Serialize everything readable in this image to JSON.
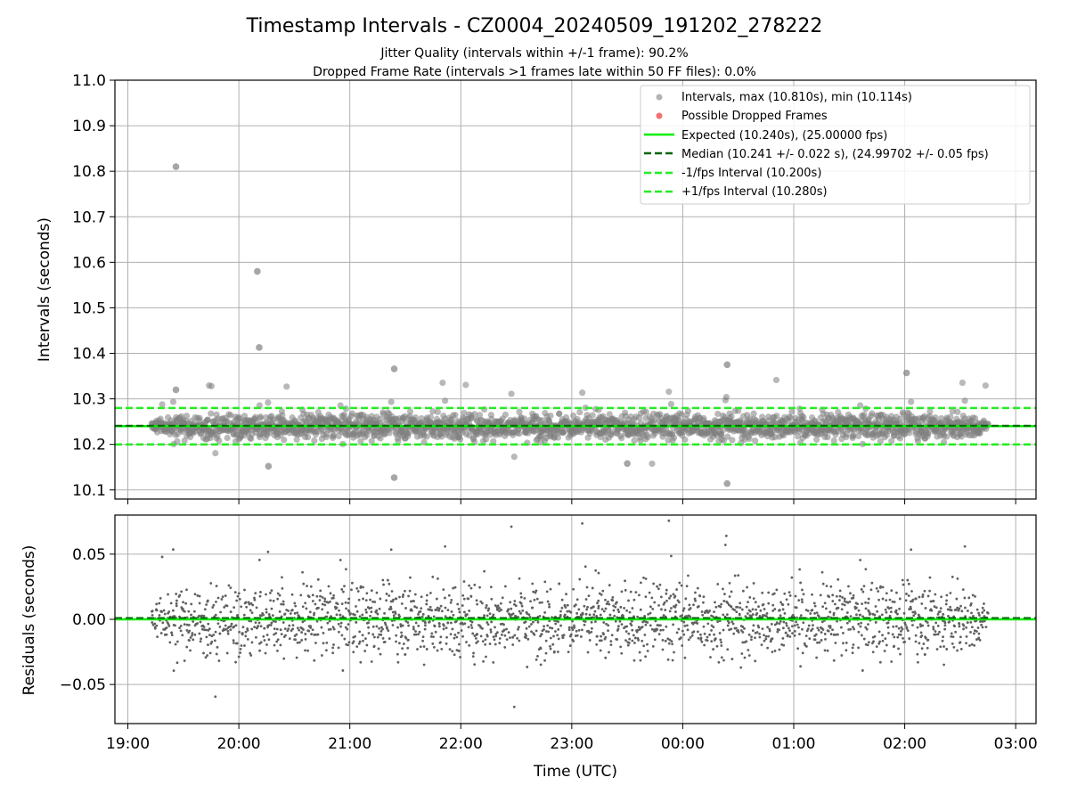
{
  "figure": {
    "title": "Timestamp Intervals - CZ0004_20240509_191202_278222",
    "subtitle_line1": "Jitter Quality (intervals within +/-1 frame): 90.2%",
    "subtitle_line2": "Dropped Frame Rate (intervals >1 frames late within 50 FF files): 0.0%"
  },
  "legend": {
    "intervals": "Intervals, max (10.810s), min (10.114s)",
    "dropped": "Possible Dropped Frames",
    "expected": "Expected (10.240s), (25.00000 fps)",
    "median": "Median (10.241 +/- 0.022 s), (24.99702 +/- 0.05 fps)",
    "minus_interval": "-1/fps Interval (10.200s)",
    "plus_interval": "+1/fps Interval (10.280s)"
  },
  "colors": {
    "points": "#808080",
    "dropped": "#f06060",
    "expected": "#00ee00",
    "median": "#006400",
    "interval": "#22ee22",
    "grid": "#b0b0b0"
  },
  "chart_data": [
    {
      "type": "scatter",
      "ylabel": "Intervals (seconds)",
      "xlim": [
        "18:53",
        "03:11"
      ],
      "ylim": [
        10.08,
        11.0
      ],
      "yticks": [
        "10.1",
        "10.2",
        "10.3",
        "10.4",
        "10.5",
        "10.6",
        "10.7",
        "10.8",
        "10.9",
        "11.0"
      ],
      "grid": true,
      "legend_position": "top-right",
      "data_x_range": [
        "19:13",
        "02:45"
      ],
      "expected": 10.24,
      "median": 10.241,
      "minus_interval": 10.2,
      "plus_interval": 10.28,
      "max": 10.81,
      "min": 10.114,
      "outliers": [
        {
          "x": "19:26",
          "y": 10.81
        },
        {
          "x": "19:26",
          "y": 10.32
        },
        {
          "x": "20:10",
          "y": 10.58
        },
        {
          "x": "20:11",
          "y": 10.413
        },
        {
          "x": "20:16",
          "y": 10.152
        },
        {
          "x": "21:24",
          "y": 10.366
        },
        {
          "x": "21:24",
          "y": 10.127
        },
        {
          "x": "23:30",
          "y": 10.158
        },
        {
          "x": "00:24",
          "y": 10.375
        },
        {
          "x": "00:24",
          "y": 10.114
        },
        {
          "x": "02:01",
          "y": 10.357
        }
      ]
    },
    {
      "type": "scatter",
      "xlabel": "Time (UTC)",
      "ylabel": "Residuals (seconds)",
      "xlim": [
        "18:53",
        "03:11"
      ],
      "ylim": [
        -0.08,
        0.08
      ],
      "yticks": [
        "−0.05",
        "0.00",
        "0.05"
      ],
      "xticks": [
        "19:00",
        "20:00",
        "21:00",
        "22:00",
        "23:00",
        "00:00",
        "01:00",
        "02:00",
        "03:00"
      ],
      "grid": true,
      "expected_residual": 0.0,
      "median_residual": 0.001
    }
  ]
}
